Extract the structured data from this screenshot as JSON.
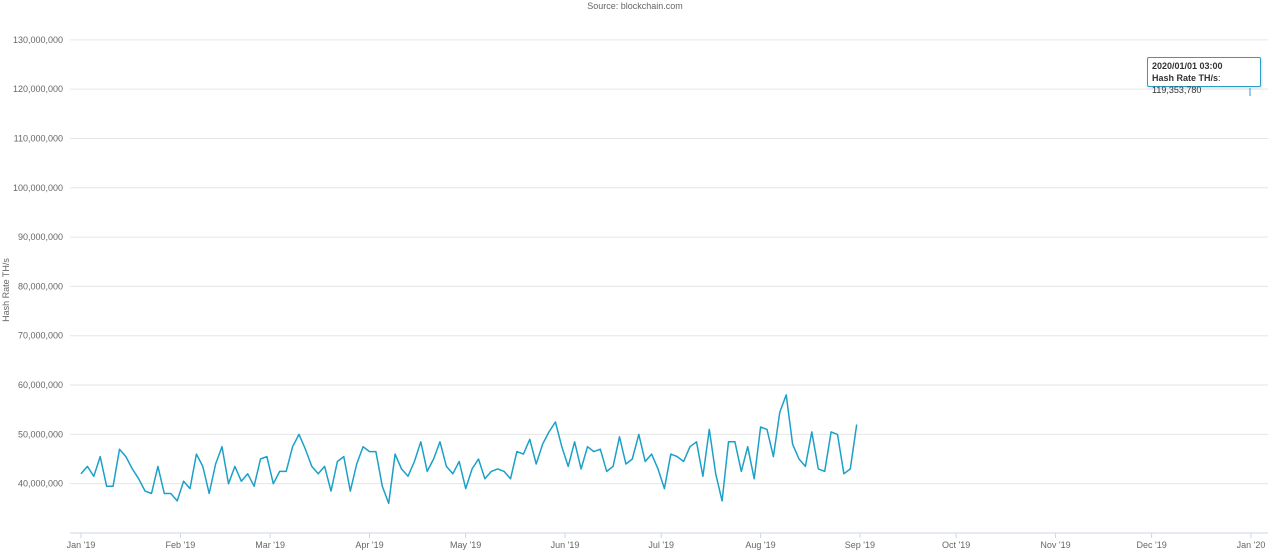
{
  "source_text": "Source: blockchain.com",
  "tooltip": {
    "date": "2020/01/01 03:00",
    "series_label": "Hash Rate TH/s",
    "value": "119,353,780"
  },
  "colors": {
    "line": "#1ba0c8",
    "grid": "#e6e6e6"
  },
  "chart_data": {
    "type": "line",
    "ylabel": "Hash Rate TH/s",
    "ylim": [
      30000000,
      132000000
    ],
    "y_ticks": [
      40000000,
      50000000,
      60000000,
      70000000,
      80000000,
      90000000,
      100000000,
      110000000,
      120000000,
      130000000
    ],
    "y_tick_labels": [
      "40,000,000",
      "50,000,000",
      "60,000,000",
      "70,000,000",
      "80,000,000",
      "90,000,000",
      "100,000,000",
      "110,000,000",
      "120,000,000",
      "130,000,000"
    ],
    "x_range": [
      "2019-01-01",
      "2020-01-01"
    ],
    "x_ticks": [
      "2019-01-01",
      "2019-02-01",
      "2019-03-01",
      "2019-04-01",
      "2019-05-01",
      "2019-06-01",
      "2019-07-01",
      "2019-08-01",
      "2019-09-01",
      "2019-10-01",
      "2019-11-01",
      "2019-12-01",
      "2020-01-01"
    ],
    "x_tick_labels": [
      "Jan '19",
      "Feb '19",
      "Mar '19",
      "Apr '19",
      "May '19",
      "Jun '19",
      "Jul '19",
      "Aug '19",
      "Sep '19",
      "Oct '19",
      "Nov '19",
      "Dec '19",
      "Jan '20"
    ],
    "grid": true,
    "legend": "none",
    "series": [
      {
        "points": [
          [
            "2019-01-01",
            42000000
          ],
          [
            "2019-01-03",
            43500000
          ],
          [
            "2019-01-05",
            41500000
          ],
          [
            "2019-01-07",
            45500000
          ],
          [
            "2019-01-09",
            39500000
          ],
          [
            "2019-01-11",
            39500000
          ],
          [
            "2019-01-13",
            47000000
          ],
          [
            "2019-01-15",
            45500000
          ],
          [
            "2019-01-17",
            43000000
          ],
          [
            "2019-01-19",
            41000000
          ],
          [
            "2019-01-21",
            38500000
          ],
          [
            "2019-01-23",
            38000000
          ],
          [
            "2019-01-25",
            43500000
          ],
          [
            "2019-01-27",
            38000000
          ],
          [
            "2019-01-29",
            38000000
          ],
          [
            "2019-01-31",
            36500000
          ],
          [
            "2019-02-02",
            40500000
          ],
          [
            "2019-02-04",
            39000000
          ],
          [
            "2019-02-06",
            46000000
          ],
          [
            "2019-02-08",
            43500000
          ],
          [
            "2019-02-10",
            38000000
          ],
          [
            "2019-02-12",
            44000000
          ],
          [
            "2019-02-14",
            47500000
          ],
          [
            "2019-02-16",
            40000000
          ],
          [
            "2019-02-18",
            43500000
          ],
          [
            "2019-02-20",
            40500000
          ],
          [
            "2019-02-22",
            42000000
          ],
          [
            "2019-02-24",
            39500000
          ],
          [
            "2019-02-26",
            45000000
          ],
          [
            "2019-02-28",
            45500000
          ],
          [
            "2019-03-02",
            40000000
          ],
          [
            "2019-03-04",
            42500000
          ],
          [
            "2019-03-06",
            42500000
          ],
          [
            "2019-03-08",
            47500000
          ],
          [
            "2019-03-10",
            50000000
          ],
          [
            "2019-03-12",
            47000000
          ],
          [
            "2019-03-14",
            43500000
          ],
          [
            "2019-03-16",
            42000000
          ],
          [
            "2019-03-18",
            43500000
          ],
          [
            "2019-03-20",
            38500000
          ],
          [
            "2019-03-22",
            44500000
          ],
          [
            "2019-03-24",
            45500000
          ],
          [
            "2019-03-26",
            38500000
          ],
          [
            "2019-03-28",
            44000000
          ],
          [
            "2019-03-30",
            47500000
          ],
          [
            "2019-04-01",
            46500000
          ],
          [
            "2019-04-03",
            46500000
          ],
          [
            "2019-04-05",
            39500000
          ],
          [
            "2019-04-07",
            36000000
          ],
          [
            "2019-04-09",
            46000000
          ],
          [
            "2019-04-11",
            43000000
          ],
          [
            "2019-04-13",
            41500000
          ],
          [
            "2019-04-15",
            44500000
          ],
          [
            "2019-04-17",
            48500000
          ],
          [
            "2019-04-19",
            42500000
          ],
          [
            "2019-04-21",
            45000000
          ],
          [
            "2019-04-23",
            48500000
          ],
          [
            "2019-04-25",
            43500000
          ],
          [
            "2019-04-27",
            42000000
          ],
          [
            "2019-04-29",
            44500000
          ],
          [
            "2019-05-01",
            39000000
          ],
          [
            "2019-05-03",
            43000000
          ],
          [
            "2019-05-05",
            45000000
          ],
          [
            "2019-05-07",
            41000000
          ],
          [
            "2019-05-09",
            42500000
          ],
          [
            "2019-05-11",
            43000000
          ],
          [
            "2019-05-13",
            42500000
          ],
          [
            "2019-05-15",
            41000000
          ],
          [
            "2019-05-17",
            46500000
          ],
          [
            "2019-05-19",
            46000000
          ],
          [
            "2019-05-21",
            49000000
          ],
          [
            "2019-05-23",
            44000000
          ],
          [
            "2019-05-25",
            48000000
          ],
          [
            "2019-05-27",
            50500000
          ],
          [
            "2019-05-29",
            52500000
          ],
          [
            "2019-05-31",
            47500000
          ],
          [
            "2019-06-02",
            43500000
          ],
          [
            "2019-06-04",
            48500000
          ],
          [
            "2019-06-06",
            43000000
          ],
          [
            "2019-06-08",
            47500000
          ],
          [
            "2019-06-10",
            46500000
          ],
          [
            "2019-06-12",
            47000000
          ],
          [
            "2019-06-14",
            42500000
          ],
          [
            "2019-06-16",
            43500000
          ],
          [
            "2019-06-18",
            49500000
          ],
          [
            "2019-06-20",
            44000000
          ],
          [
            "2019-06-22",
            45000000
          ],
          [
            "2019-06-24",
            50000000
          ],
          [
            "2019-06-26",
            44500000
          ],
          [
            "2019-06-28",
            46000000
          ],
          [
            "2019-06-30",
            43000000
          ],
          [
            "2019-07-02",
            39000000
          ],
          [
            "2019-07-04",
            46000000
          ],
          [
            "2019-07-06",
            45500000
          ],
          [
            "2019-07-08",
            44500000
          ],
          [
            "2019-07-10",
            47500000
          ],
          [
            "2019-07-12",
            48500000
          ],
          [
            "2019-07-14",
            41500000
          ],
          [
            "2019-07-16",
            51000000
          ],
          [
            "2019-07-18",
            42000000
          ],
          [
            "2019-07-20",
            36500000
          ],
          [
            "2019-07-22",
            48500000
          ],
          [
            "2019-07-24",
            48500000
          ],
          [
            "2019-07-26",
            42500000
          ],
          [
            "2019-07-28",
            47500000
          ],
          [
            "2019-07-30",
            41000000
          ],
          [
            "2019-08-01",
            51500000
          ],
          [
            "2019-08-03",
            51000000
          ],
          [
            "2019-08-05",
            45500000
          ],
          [
            "2019-08-07",
            54500000
          ],
          [
            "2019-08-09",
            58000000
          ],
          [
            "2019-08-11",
            48000000
          ],
          [
            "2019-08-13",
            45000000
          ],
          [
            "2019-08-15",
            43500000
          ],
          [
            "2019-08-17",
            50500000
          ],
          [
            "2019-08-19",
            43000000
          ],
          [
            "2019-08-21",
            42500000
          ],
          [
            "2019-08-23",
            50500000
          ],
          [
            "2019-08-25",
            50000000
          ],
          [
            "2019-08-27",
            42000000
          ],
          [
            "2019-08-29",
            43000000
          ],
          [
            "2019-08-31",
            52000000
          ]
        ]
      }
    ]
  }
}
